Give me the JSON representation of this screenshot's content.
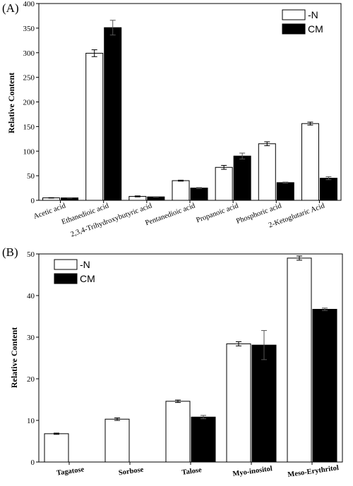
{
  "chart_data": [
    {
      "panel_label": "(A)",
      "type": "bar",
      "ylabel": "Relative Content",
      "ylim": [
        0,
        400
      ],
      "yticks": [
        0,
        50,
        100,
        150,
        200,
        250,
        300,
        350,
        400
      ],
      "categories": [
        "Acetic acid",
        "Ethanedioic acid",
        "2,3,4-Trihydroxybutyric acid",
        "Pentanedioic acid",
        "Propanoic acid",
        "Phosphoric acid",
        "2-Ketoglutaric Acid"
      ],
      "series": [
        {
          "name": "-N",
          "color": "#ffffff",
          "values": [
            5,
            299,
            8,
            40,
            67,
            115,
            156
          ],
          "errors": [
            0.5,
            7,
            1,
            1,
            4,
            4,
            3
          ]
        },
        {
          "name": "CM",
          "color": "#000000",
          "values": [
            5,
            351,
            7,
            25,
            90,
            36,
            45
          ],
          "errors": [
            0.5,
            15,
            0.5,
            1,
            6,
            1,
            3
          ]
        }
      ],
      "legend_position": "top-right"
    },
    {
      "panel_label": "(B)",
      "type": "bar",
      "ylabel": "Relative Content",
      "ylim": [
        0,
        50
      ],
      "yticks": [
        0,
        10,
        20,
        30,
        40,
        50
      ],
      "categories": [
        "Tagatose",
        "Sorbose",
        "Talose",
        "Myo-inositol",
        "Meso-Erythritol"
      ],
      "series": [
        {
          "name": "-N",
          "color": "#ffffff",
          "values": [
            6.8,
            10.3,
            14.6,
            28.4,
            49.0
          ],
          "errors": [
            0.15,
            0.3,
            0.3,
            0.5,
            0.5
          ]
        },
        {
          "name": "CM",
          "color": "#000000",
          "values": [
            null,
            null,
            10.8,
            28.1,
            36.7
          ],
          "errors": [
            null,
            null,
            0.4,
            3.5,
            0.3
          ]
        }
      ],
      "legend_position": "top-left"
    }
  ]
}
